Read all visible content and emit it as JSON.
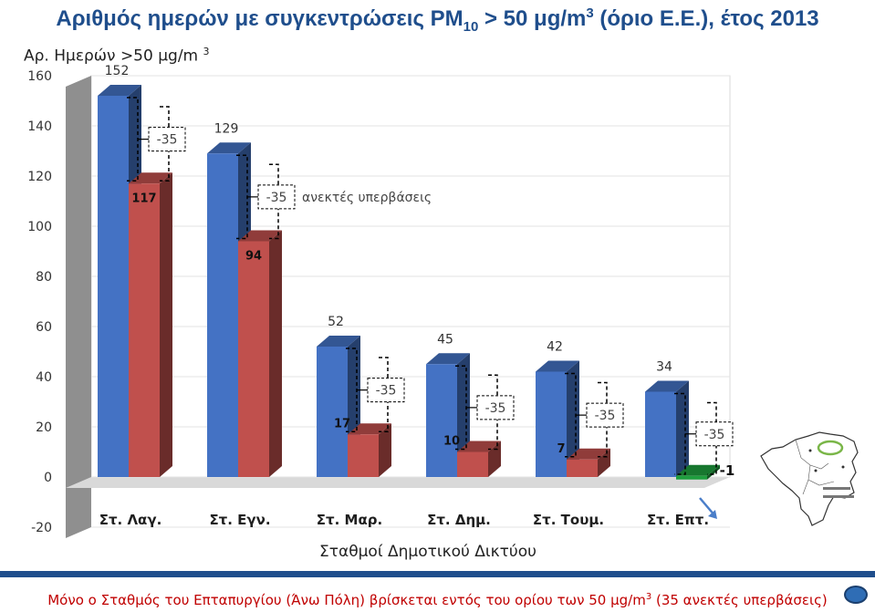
{
  "title": {
    "prefix": "Αριθμός ημερών με συγκεντρώσεις PM",
    "sub": "10",
    "middle": " > 50 μg/m",
    "sup": "3",
    "suffix": "  (όριο Ε.Ε.), έτος 2013"
  },
  "ylabel": {
    "text": "Αρ. Ημερών >50 μg/m ",
    "sup": "3"
  },
  "footer": {
    "text": "Μόνο ο Σταθμός του Επταπυργίου (Άνω Πόλη) βρίσκεται εντός του ορίου των 50 μg/m",
    "sup": "3",
    "suffix": " (35 ανεκτές υπερβάσεις)"
  },
  "chart_data": {
    "type": "bar",
    "title": "Αριθμός ημερών με συγκεντρώσεις PM10 > 50 μg/m3 (όριο Ε.Ε.), έτος 2013",
    "xlabel": "Σταθμοί Δημοτικού Δικτύου",
    "ylabel": "Αρ. Ημερών >50 μg/m3",
    "ylim": [
      -20,
      160
    ],
    "yticks": [
      "-20",
      "0",
      "20",
      "40",
      "60",
      "80",
      "100",
      "120",
      "140",
      "160"
    ],
    "categories": [
      "Στ. Λαγ.",
      "Στ. Εγν.",
      "Στ. Μαρ.",
      "Στ. Δημ.",
      "Στ. Τουμ.",
      "Στ. Επτ."
    ],
    "series": [
      {
        "values": [
          152,
          129,
          52,
          45,
          42,
          34
        ],
        "labels": [
          "152",
          "129",
          "52",
          "45",
          "42",
          "34"
        ]
      },
      {
        "values": [
          117,
          94,
          17,
          10,
          7,
          -1
        ],
        "labels": [
          "117",
          "94",
          "17",
          "10",
          "7",
          "-1"
        ]
      }
    ],
    "step_labels": [
      "-35",
      "-35",
      "-35",
      "-35",
      "-35",
      "-35"
    ],
    "annotation": "ανεκτές υπερβάσεις",
    "grid": true,
    "colors": {
      "total": "#4472c4",
      "exceed": "#c0504d",
      "within": "#1e9e3e",
      "title": "#1f4e8c",
      "footer": "#c00000"
    }
  },
  "icons": {
    "map": "region-map-icon",
    "arrow": "arrow-indicator-icon",
    "nav": "nav-button-icon"
  }
}
